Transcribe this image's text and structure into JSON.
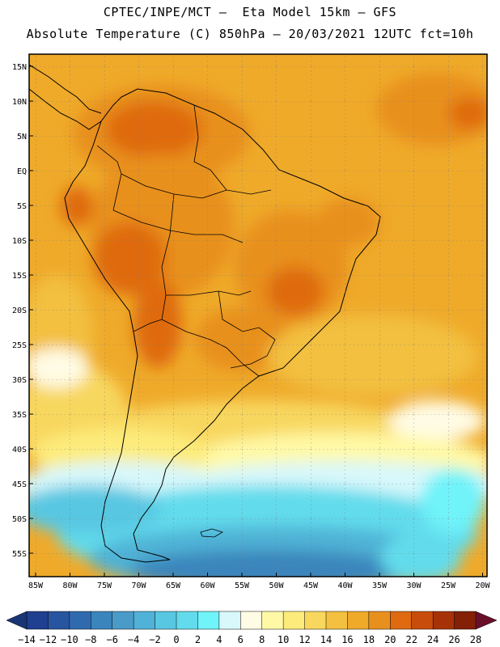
{
  "header": {
    "line1": "CPTEC/INPE/MCT –  Eta Model 15km – GFS",
    "line2": "Absolute Temperature (C) 850hPa – 20/03/2021 12UTC fct=10h"
  },
  "lat_labels": [
    "15N",
    "10N",
    "5N",
    "EQ",
    "5S",
    "10S",
    "15S",
    "20S",
    "25S",
    "30S",
    "35S",
    "40S",
    "45S",
    "50S",
    "55S"
  ],
  "lon_labels": [
    "85W",
    "80W",
    "75W",
    "70W",
    "65W",
    "60W",
    "55W",
    "50W",
    "45W",
    "40W",
    "35W",
    "30W",
    "25W",
    "20W"
  ],
  "colorbar": {
    "labels": [
      "-14",
      "-12",
      "-10",
      "-8",
      "-6",
      "-4",
      "-2",
      "0",
      "2",
      "4",
      "6",
      "8",
      "10",
      "12",
      "14",
      "16",
      "18",
      "20",
      "22",
      "24",
      "26",
      "28"
    ],
    "colors": [
      "#1f3f8f",
      "#2855a0",
      "#2f6aae",
      "#3a85bc",
      "#4a9bc8",
      "#4fb2d6",
      "#58c7e2",
      "#62dcec",
      "#70f3f9",
      "#d8f8fb",
      "#fffbe4",
      "#fff9a6",
      "#fdec7c",
      "#f8d75e",
      "#f3c040",
      "#efaa2a",
      "#e8901e",
      "#df6a10",
      "#c84c0b",
      "#a83208",
      "#832006"
    ]
  }
}
